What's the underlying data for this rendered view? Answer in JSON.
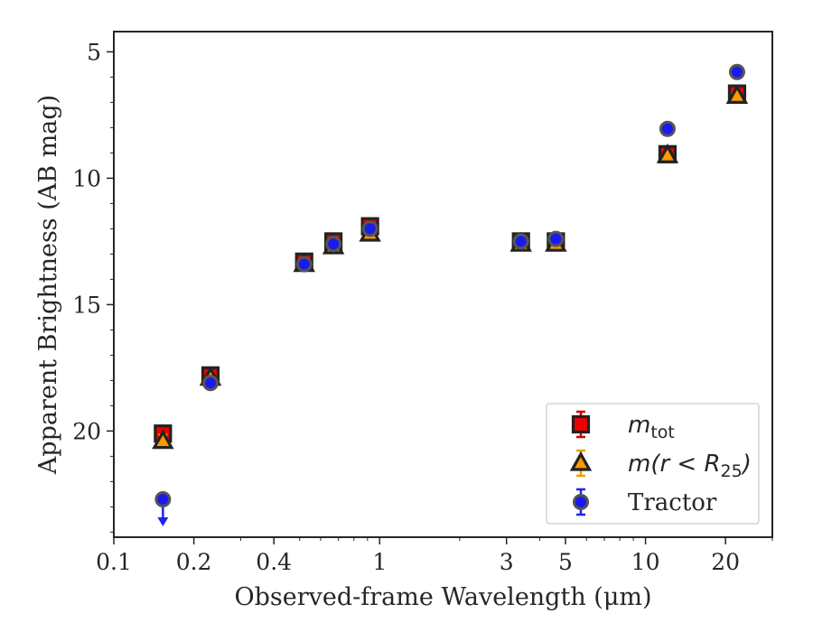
{
  "chart_data": {
    "type": "scatter",
    "xlabel": "Observed-frame Wavelength (μm)",
    "ylabel": "Apparent Brightness (AB mag)",
    "x_scale": "log",
    "xlim": [
      0.1,
      30
    ],
    "ylim": [
      24.2,
      4.2
    ],
    "y_inverted": true,
    "x_ticks": [
      {
        "value": 0.1,
        "label": "0.1"
      },
      {
        "value": 0.2,
        "label": "0.2"
      },
      {
        "value": 0.4,
        "label": "0.4"
      },
      {
        "value": 1,
        "label": "1"
      },
      {
        "value": 3,
        "label": "3"
      },
      {
        "value": 5,
        "label": "5"
      },
      {
        "value": 10,
        "label": "10"
      },
      {
        "value": 20,
        "label": "20"
      }
    ],
    "y_ticks": [
      {
        "value": 5,
        "label": "5"
      },
      {
        "value": 10,
        "label": "10"
      },
      {
        "value": 15,
        "label": "15"
      },
      {
        "value": 20,
        "label": "20"
      }
    ],
    "grid": false,
    "legend_position": "lower right",
    "series": [
      {
        "name": "m_tot",
        "legend": {
          "main": "m",
          "sub": "tot",
          "rest": ""
        },
        "marker": "square",
        "face_color": "#ee0000",
        "edge_color": "#222222",
        "error_color": "#cc0000",
        "points": [
          {
            "x": 0.153,
            "y": 20.1,
            "err": 0.15
          },
          {
            "x": 0.231,
            "y": 17.8,
            "err": 0.1
          },
          {
            "x": 0.52,
            "y": 13.3,
            "err": 0.08
          },
          {
            "x": 0.67,
            "y": 12.5,
            "err": 0.08
          },
          {
            "x": 0.92,
            "y": 11.9,
            "err": 0.08
          },
          {
            "x": 3.4,
            "y": 12.5,
            "err": 0.08
          },
          {
            "x": 4.6,
            "y": 12.5,
            "err": 0.08
          },
          {
            "x": 12.1,
            "y": 9.05,
            "err": 0.08
          },
          {
            "x": 22.1,
            "y": 6.65,
            "err": 0.1
          }
        ]
      },
      {
        "name": "m(r<R_25)",
        "legend": {
          "main": "m(r < R",
          "sub": "25",
          "rest": ")"
        },
        "marker": "triangle",
        "face_color": "#ff9900",
        "edge_color": "#222222",
        "error_color": "#f0a000",
        "points": [
          {
            "x": 0.153,
            "y": 20.4,
            "err": 0.25
          },
          {
            "x": 0.231,
            "y": 17.9,
            "err": 0.1
          },
          {
            "x": 0.52,
            "y": 13.4,
            "err": 0.08
          },
          {
            "x": 0.67,
            "y": 12.7,
            "err": 0.08
          },
          {
            "x": 0.92,
            "y": 12.2,
            "err": 0.08
          },
          {
            "x": 3.4,
            "y": 12.6,
            "err": 0.08
          },
          {
            "x": 4.6,
            "y": 12.6,
            "err": 0.08
          },
          {
            "x": 12.1,
            "y": 9.1,
            "err": 0.08
          },
          {
            "x": 22.1,
            "y": 6.75,
            "err": 0.1
          }
        ]
      },
      {
        "name": "Tractor",
        "legend": {
          "main": "Tractor",
          "sub": "",
          "rest": ""
        },
        "marker": "circle",
        "face_color": "#1a1aee",
        "edge_color": "#555555",
        "error_color": "#2222ee",
        "points": [
          {
            "x": 0.153,
            "y": 22.7,
            "err": 0,
            "upper_limit": true
          },
          {
            "x": 0.231,
            "y": 18.1,
            "err": 0.05
          },
          {
            "x": 0.52,
            "y": 13.4,
            "err": 0.05
          },
          {
            "x": 0.67,
            "y": 12.6,
            "err": 0.05
          },
          {
            "x": 0.92,
            "y": 12.0,
            "err": 0.05
          },
          {
            "x": 3.4,
            "y": 12.5,
            "err": 0.05
          },
          {
            "x": 4.6,
            "y": 12.4,
            "err": 0.05
          },
          {
            "x": 12.1,
            "y": 8.05,
            "err": 0.05
          },
          {
            "x": 22.1,
            "y": 5.8,
            "err": 0.05
          }
        ]
      }
    ]
  }
}
